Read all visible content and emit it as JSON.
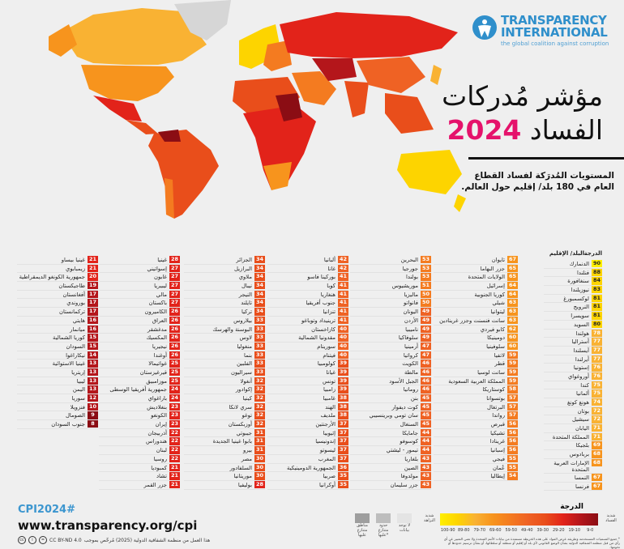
{
  "brand": {
    "name_line1": "TRANSPARENCY",
    "name_line2": "INTERNATIONAL",
    "tagline": "the global coalition against corruption",
    "logo_color": "#2f8fcb"
  },
  "title": {
    "line1": "مؤشر مُدركات",
    "line2_text": "الفساد",
    "year": "2024",
    "year_color": "#e5126b"
  },
  "subtitle": "المستويات المُدرَكة لفساد القطاع العام في 180 بلد/ إقليم حول العالم.",
  "table_header": {
    "country": "البلد/ الإقليم",
    "score": "الدرجة"
  },
  "columns": [
    [
      [
        "الدنمارك",
        90
      ],
      [
        "فنلندا",
        88
      ],
      [
        "سنغافورة",
        84
      ],
      [
        "نيوزيلندا",
        83
      ],
      [
        "لوكسمبورغ",
        81
      ],
      [
        "النرويج",
        81
      ],
      [
        "سويسرا",
        81
      ],
      [
        "السويد",
        80
      ],
      [
        "هولندا",
        78
      ],
      [
        "أستراليا",
        77
      ],
      [
        "آيسلندا",
        77
      ],
      [
        "أيرلندا",
        77
      ],
      [
        "إستونيا",
        76
      ],
      [
        "أوروغواي",
        76
      ],
      [
        "كندا",
        75
      ],
      [
        "ألمانيا",
        75
      ],
      [
        "هونغ كونغ",
        74
      ],
      [
        "بوتان",
        72
      ],
      [
        "سيشيل",
        72
      ],
      [
        "اليابان",
        71
      ],
      [
        "المملكة المتحدة",
        71
      ],
      [
        "بلجيكا",
        69
      ],
      [
        "بربادوس",
        68
      ],
      [
        "الإمارات العربية المتحدة",
        68
      ],
      [
        "النمسا",
        67
      ],
      [
        "فرنسا",
        67
      ]
    ],
    [
      [
        "تايوان",
        67
      ],
      [
        "جزر البهاما",
        65
      ],
      [
        "الولايات المتحدة",
        65
      ],
      [
        "إسرائيل",
        64
      ],
      [
        "كوريا الجنوبية",
        64
      ],
      [
        "شيلي",
        63
      ],
      [
        "ليتوانيا",
        63
      ],
      [
        "سانت فنسنت وجزر غرينادين",
        63
      ],
      [
        "كابو فيردي",
        62
      ],
      [
        "دومينيكا",
        60
      ],
      [
        "سلوفينيا",
        60
      ],
      [
        "لاتفيا",
        59
      ],
      [
        "قطر",
        59
      ],
      [
        "سانت لوسيا",
        59
      ],
      [
        "المملكة العربية السعودية",
        59
      ],
      [
        "كوستاريكا",
        58
      ],
      [
        "بوتسوانا",
        57
      ],
      [
        "البرتغال",
        57
      ],
      [
        "رواندا",
        57
      ],
      [
        "قبرص",
        56
      ],
      [
        "تشيكيا",
        56
      ],
      [
        "غرينادا",
        56
      ],
      [
        "إسبانيا",
        56
      ],
      [
        "فيجي",
        55
      ],
      [
        "عُمان",
        55
      ],
      [
        "إيطاليا",
        54
      ]
    ],
    [
      [
        "البحرين",
        53
      ],
      [
        "جورجيا",
        53
      ],
      [
        "بولندا",
        53
      ],
      [
        "موريشيوس",
        51
      ],
      [
        "ماليزيا",
        50
      ],
      [
        "فانواتو",
        50
      ],
      [
        "اليونان",
        49
      ],
      [
        "الأردن",
        49
      ],
      [
        "ناميبيا",
        49
      ],
      [
        "سلوفاكيا",
        49
      ],
      [
        "أرمينيا",
        47
      ],
      [
        "كرواتيا",
        47
      ],
      [
        "الكويت",
        46
      ],
      [
        "مالطة",
        46
      ],
      [
        "الجبل الأسود",
        46
      ],
      [
        "رومانيا",
        46
      ],
      [
        "بنن",
        45
      ],
      [
        "كوت ديفوار",
        45
      ],
      [
        "سان تومي وبرينسيبي",
        45
      ],
      [
        "السنغال",
        45
      ],
      [
        "جامايكا",
        44
      ],
      [
        "كوسوفو",
        44
      ],
      [
        "تيمور - ليشتي",
        44
      ],
      [
        "بلغاريا",
        43
      ],
      [
        "الصين",
        43
      ],
      [
        "مولدوفا",
        43
      ],
      [
        "جزر سليمان",
        43
      ]
    ],
    [
      [
        "ألبانيا",
        42
      ],
      [
        "غانا",
        42
      ],
      [
        "بوركينا فاسو",
        41
      ],
      [
        "كوبا",
        41
      ],
      [
        "هنغاريا",
        41
      ],
      [
        "جنوب أفريقيا",
        41
      ],
      [
        "تنزانيا",
        41
      ],
      [
        "ترينيداد وتوباغو",
        41
      ],
      [
        "كازاخستان",
        40
      ],
      [
        "مقدونيا الشمالية",
        40
      ],
      [
        "سورينام",
        40
      ],
      [
        "فيتنام",
        40
      ],
      [
        "كولومبيا",
        39
      ],
      [
        "غيانا",
        39
      ],
      [
        "تونس",
        39
      ],
      [
        "زامبيا",
        39
      ],
      [
        "غامبيا",
        38
      ],
      [
        "الهند",
        38
      ],
      [
        "ملديف",
        38
      ],
      [
        "الأرجنتين",
        37
      ],
      [
        "إثيوبيا",
        37
      ],
      [
        "إندونيسيا",
        37
      ],
      [
        "ليسوتو",
        37
      ],
      [
        "المغرب",
        37
      ],
      [
        "الجمهورية الدومينيكية",
        36
      ],
      [
        "صربيا",
        35
      ],
      [
        "أوكرانيا",
        35
      ]
    ],
    [
      [
        "الجزائر",
        34
      ],
      [
        "البرازيل",
        34
      ],
      [
        "ملاوي",
        34
      ],
      [
        "نيبال",
        34
      ],
      [
        "النيجر",
        34
      ],
      [
        "تايلند",
        34
      ],
      [
        "تركيا",
        34
      ],
      [
        "بيلاروس",
        33
      ],
      [
        "البوسنة والهرسك",
        33
      ],
      [
        "لاوس",
        33
      ],
      [
        "منغوليا",
        33
      ],
      [
        "بنما",
        33
      ],
      [
        "الفلبين",
        33
      ],
      [
        "سيراليون",
        33
      ],
      [
        "أنغولا",
        32
      ],
      [
        "إكوادور",
        32
      ],
      [
        "كينيا",
        32
      ],
      [
        "سري لانكا",
        32
      ],
      [
        "توغو",
        32
      ],
      [
        "أوزبكستان",
        32
      ],
      [
        "جيبوتي",
        31
      ],
      [
        "بابوا غينيا الجديدة",
        31
      ],
      [
        "بيرو",
        31
      ],
      [
        "مصر",
        30
      ],
      [
        "السلفادور",
        30
      ],
      [
        "موريتانيا",
        30
      ],
      [
        "بوليفيا",
        28
      ]
    ],
    [
      [
        "غينيا",
        28
      ],
      [
        "إسواتيني",
        27
      ],
      [
        "غابون",
        27
      ],
      [
        "ليبيريا",
        27
      ],
      [
        "مالي",
        27
      ],
      [
        "باكستان",
        27
      ],
      [
        "الكاميرون",
        26
      ],
      [
        "العراق",
        26
      ],
      [
        "مدغشقر",
        26
      ],
      [
        "المكسيك",
        26
      ],
      [
        "نيجيريا",
        26
      ],
      [
        "أوغندا",
        26
      ],
      [
        "غواتيمالا",
        25
      ],
      [
        "قيرغيزستان",
        25
      ],
      [
        "موزامبيق",
        25
      ],
      [
        "جمهورية أفريقيا الوسطى",
        24
      ],
      [
        "باراغواي",
        24
      ],
      [
        "بنغلاديش",
        23
      ],
      [
        "الكونغو",
        23
      ],
      [
        "إيران",
        23
      ],
      [
        "أذربيجان",
        22
      ],
      [
        "هندوراس",
        22
      ],
      [
        "لبنان",
        22
      ],
      [
        "روسيا",
        22
      ],
      [
        "كمبوديا",
        21
      ],
      [
        "تشاد",
        21
      ],
      [
        "جزر القمر",
        21
      ]
    ],
    [
      [
        "غينيا بيساو",
        21
      ],
      [
        "زيمبابوي",
        21
      ],
      [
        "جمهورية الكونغو الديمقراطية",
        20
      ],
      [
        "طاجيكستان",
        19
      ],
      [
        "أفغانستان",
        17
      ],
      [
        "بوروندي",
        17
      ],
      [
        "تركمانستان",
        17
      ],
      [
        "هايتي",
        16
      ],
      [
        "ميانمار",
        16
      ],
      [
        "كوريا الشمالية",
        15
      ],
      [
        "السودان",
        15
      ],
      [
        "نيكاراغوا",
        14
      ],
      [
        "غينيا الاستوائية",
        13
      ],
      [
        "إريتريا",
        13
      ],
      [
        "ليبيا",
        13
      ],
      [
        "اليمن",
        13
      ],
      [
        "سوريا",
        12
      ],
      [
        "فنزويلا",
        10
      ],
      [
        "الصومال",
        9
      ],
      [
        "جنوب السودان",
        8
      ]
    ]
  ],
  "score_colors": [
    "#8b0d14",
    "#b4161b",
    "#e2231a",
    "#e94e1b",
    "#ef6224",
    "#f47b20",
    "#f7941d",
    "#f9b233",
    "#fdd400",
    "#ffef00"
  ],
  "legend": {
    "title": "الدرجة",
    "very_corrupt": "شديد الفساد",
    "very_clean": "شديد النزاهة",
    "ranges": [
      "100-90",
      "89-80",
      "79-70",
      "69-60",
      "59-50",
      "49-40",
      "39-30",
      "29-20",
      "19-10",
      "9-0"
    ],
    "no_data": "لا توجد بيانات",
    "disputed_borders": "حدود متنازع عليها*",
    "disputed_areas": "مناطق متنازع عليها",
    "footnote": "* جميع التسميات المستخدمة وطريقة عرض المواد على هذه الخريطة مستمدة من بيانات الأمم المتحدة ولا تعني التعبير عن أي رأي من قبل منظمة الشفافية الدولية بشأن الوضع القانوني لأي بلد أو إقليم أو منطقة أو سلطاتها، أو بشأن ترسيم حدودها أو تخومها."
  },
  "footer": {
    "hashtag": "CPI2024#",
    "url": "www.transparency.org/cpi",
    "license": "CC BY-ND 4.0",
    "license_text": "هذا العمل من منظمة الشفافية الدولية (2025) مُرخّص بموجب"
  }
}
